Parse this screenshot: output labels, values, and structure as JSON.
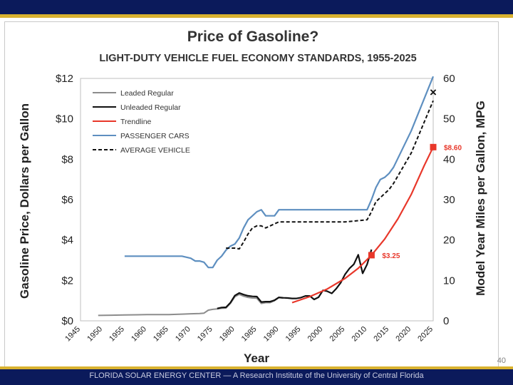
{
  "slide": {
    "footer": "FLORIDA SOLAR ENERGY CENTER — A Research Institute of the University of Central Florida",
    "page_number": "40"
  },
  "colors": {
    "bar_navy": "#0b1a5b",
    "stripe_gold": "#d9b230",
    "leaded": "#8c8c8c",
    "unleaded": "#111111",
    "trendline": "#e8372a",
    "passenger": "#5e8fc0",
    "average": "#111111"
  },
  "chart_data": {
    "type": "line",
    "title": "Price of Gasoline?",
    "subtitle": "LIGHT-DUTY VEHICLE FUEL ECONOMY STANDARDS, 1955-2025",
    "xlabel": "Year",
    "ylabel": "Gasoline Price, Dollars per Gallon",
    "y2label": "Model Year Miles per Gallon, MPG",
    "xlim": [
      1945,
      2025
    ],
    "ylim": [
      0,
      12
    ],
    "y2lim": [
      0,
      60
    ],
    "x_ticks": [
      1945,
      1950,
      1955,
      1960,
      1965,
      1970,
      1975,
      1980,
      1985,
      1990,
      1995,
      2000,
      2005,
      2010,
      2015,
      2020,
      2025
    ],
    "y_ticks": [
      "$0",
      "$2",
      "$4",
      "$6",
      "$8",
      "$10",
      "$12"
    ],
    "y_tick_values": [
      0,
      2,
      4,
      6,
      8,
      10,
      12
    ],
    "y2_ticks": [
      "0",
      "10",
      "20",
      "30",
      "40",
      "50",
      "60"
    ],
    "y2_tick_values": [
      0,
      10,
      20,
      30,
      40,
      50,
      60
    ],
    "series": [
      {
        "name": "Leaded Regular",
        "axis": "left",
        "style": "solid",
        "x": [
          1949,
          1952,
          1955,
          1958,
          1960,
          1962,
          1965,
          1968,
          1970,
          1972,
          1973,
          1974,
          1975,
          1976,
          1977,
          1978,
          1979,
          1980,
          1981,
          1982,
          1983,
          1984,
          1985,
          1986,
          1987,
          1988,
          1989,
          1990,
          1991
        ],
        "values": [
          0.27,
          0.28,
          0.29,
          0.3,
          0.31,
          0.31,
          0.31,
          0.33,
          0.35,
          0.36,
          0.38,
          0.53,
          0.57,
          0.59,
          0.62,
          0.63,
          0.86,
          1.19,
          1.31,
          1.22,
          1.16,
          1.13,
          1.12,
          0.86,
          0.9,
          0.9,
          1.0,
          1.15,
          1.12
        ]
      },
      {
        "name": "Unleaded Regular",
        "axis": "left",
        "style": "solid",
        "x": [
          1976,
          1977,
          1978,
          1979,
          1980,
          1981,
          1982,
          1983,
          1984,
          1985,
          1986,
          1987,
          1988,
          1989,
          1990,
          1991,
          1992,
          1993,
          1994,
          1995,
          1996,
          1997,
          1998,
          1999,
          2000,
          2001,
          2002,
          2003,
          2004,
          2005,
          2006,
          2007,
          2008,
          2009,
          2010,
          2011
        ],
        "values": [
          0.61,
          0.66,
          0.67,
          0.9,
          1.25,
          1.38,
          1.3,
          1.24,
          1.21,
          1.2,
          0.93,
          0.95,
          0.95,
          1.02,
          1.16,
          1.14,
          1.13,
          1.11,
          1.11,
          1.15,
          1.23,
          1.23,
          1.06,
          1.17,
          1.51,
          1.46,
          1.36,
          1.59,
          1.88,
          2.3,
          2.59,
          2.8,
          3.27,
          2.35,
          2.79,
          3.53
        ]
      },
      {
        "name": "Trendline",
        "axis": "left",
        "style": "solid",
        "x": [
          1993,
          1997,
          2001,
          2005,
          2008,
          2011,
          2014,
          2017,
          2020,
          2023,
          2025
        ],
        "values": [
          0.9,
          1.2,
          1.58,
          2.1,
          2.6,
          3.25,
          4.05,
          5.05,
          6.25,
          7.7,
          8.6
        ]
      },
      {
        "name": "PASSENGER CARS",
        "axis": "right",
        "style": "solid",
        "x": [
          1955,
          1968,
          1970,
          1971,
          1972,
          1973,
          1974,
          1975,
          1976,
          1977,
          1978,
          1979,
          1980,
          1981,
          1982,
          1983,
          1984,
          1985,
          1986,
          1987,
          1988,
          1989,
          1990,
          1995,
          2000,
          2005,
          2010,
          2011,
          2012,
          2013,
          2014,
          2015,
          2016,
          2020,
          2025
        ],
        "values": [
          16,
          16,
          15.5,
          14.8,
          14.8,
          14.5,
          13.2,
          13.2,
          15.0,
          16.0,
          17.5,
          18.5,
          19.0,
          20.5,
          23.0,
          25.0,
          26.0,
          27.0,
          27.5,
          26.0,
          26.0,
          26.0,
          27.5,
          27.5,
          27.5,
          27.5,
          27.5,
          30.0,
          33.0,
          35.0,
          35.5,
          36.5,
          38.0,
          47.0,
          60.5
        ]
      },
      {
        "name": "AVERAGE VEHICLE",
        "axis": "right",
        "style": "dashed",
        "x": [
          1978,
          1980,
          1981,
          1982,
          1983,
          1984,
          1985,
          1986,
          1987,
          1990,
          1995,
          2000,
          2005,
          2010,
          2011,
          2012,
          2013,
          2014,
          2015,
          2016,
          2020,
          2025
        ],
        "values": [
          18.0,
          18.0,
          17.8,
          19.5,
          21.5,
          23.0,
          23.5,
          23.5,
          23.0,
          24.5,
          24.5,
          24.5,
          24.5,
          25.0,
          27.0,
          29.5,
          30.5,
          31.5,
          32.5,
          34.0,
          41.5,
          54.5
        ]
      }
    ],
    "annotations": [
      {
        "text": "$3.25",
        "x": 2011,
        "y": 3.25,
        "marker": "square"
      },
      {
        "text": "$8.60",
        "x": 2025,
        "y": 8.6,
        "marker": "square"
      },
      {
        "text": "×",
        "x": 2025,
        "y2": 54.5,
        "marker": "x"
      }
    ]
  }
}
